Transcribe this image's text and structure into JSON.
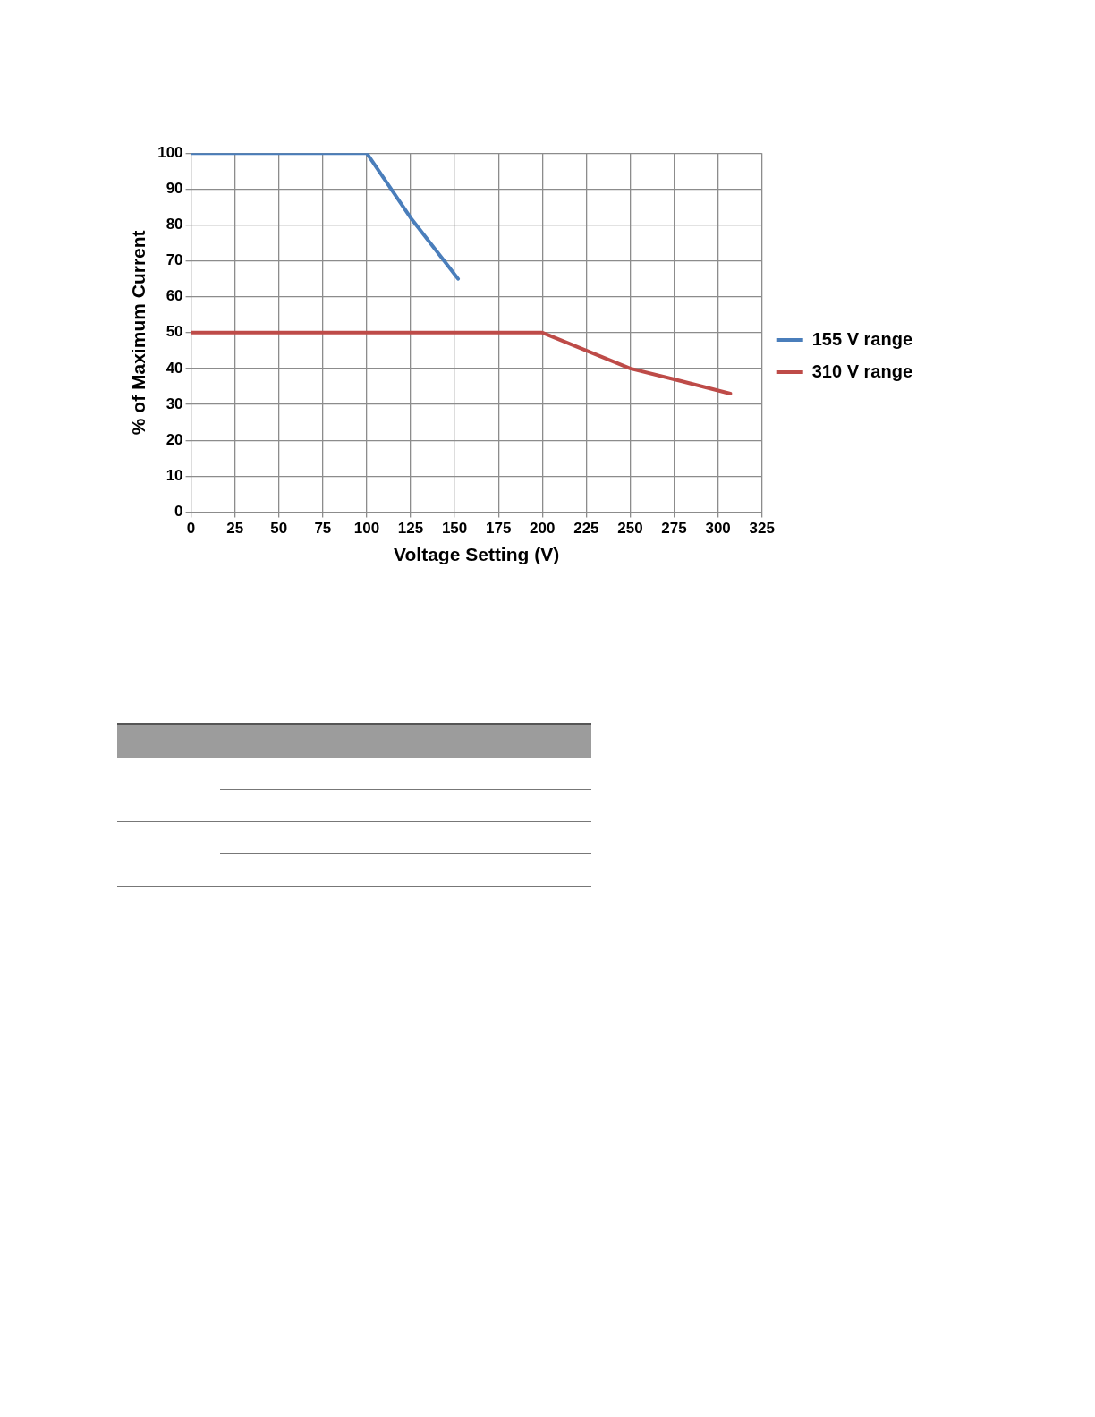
{
  "chart_data": {
    "type": "line",
    "xlabel": "Voltage Setting (V)",
    "ylabel": "% of Maximum Current",
    "xlim": [
      0,
      325
    ],
    "xticks": [
      0,
      25,
      50,
      75,
      100,
      125,
      150,
      175,
      200,
      225,
      250,
      275,
      300,
      325
    ],
    "ylim": [
      0,
      100
    ],
    "yticks": [
      0,
      10,
      20,
      30,
      40,
      50,
      60,
      70,
      80,
      90,
      100
    ],
    "grid": true,
    "legend": "right",
    "marker": "none",
    "line_style": "solid",
    "series": [
      {
        "name": "155 V range",
        "color": "#4a7ebb",
        "x": [
          0,
          100,
          125,
          152
        ],
        "values": [
          100,
          100,
          82,
          65
        ]
      },
      {
        "name": "310 V range",
        "color": "#be4b48",
        "x": [
          0,
          200,
          225,
          250,
          275,
          307
        ],
        "values": [
          50,
          50,
          45,
          40,
          37,
          33
        ]
      }
    ]
  }
}
